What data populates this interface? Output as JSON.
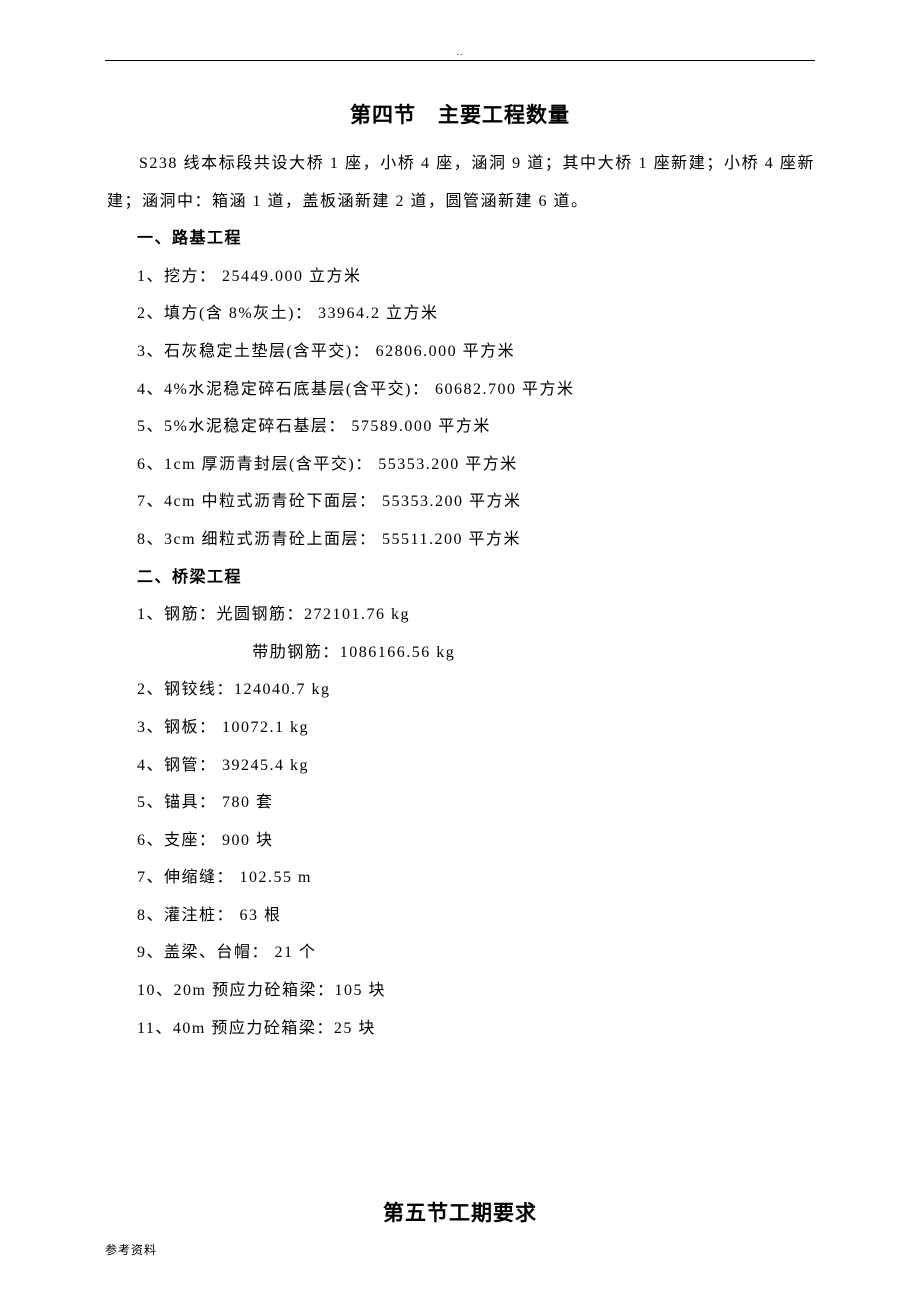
{
  "section4": {
    "title_left": "第四节",
    "title_right": "主要工程数量",
    "intro": "S238 线本标段共设大桥 1 座，小桥 4 座，涵洞 9 道；其中大桥 1 座新建；小桥 4 座新建；涵洞中：箱涵 1 道，盖板涵新建 2 道，圆管涵新建 6 道。"
  },
  "subgrade": {
    "heading": "一、路基工程",
    "items": [
      "1、挖方：  25449.000 立方米",
      "2、填方(含 8%灰土)：  33964.2 立方米",
      "3、石灰稳定土垫层(含平交)：  62806.000 平方米",
      "4、4%水泥稳定碎石底基层(含平交)：  60682.700 平方米",
      "5、5%水泥稳定碎石基层：  57589.000 平方米",
      "6、1cm 厚沥青封层(含平交)：  55353.200 平方米",
      "7、4cm 中粒式沥青砼下面层：  55353.200 平方米",
      "8、3cm 细粒式沥青砼上面层：  55511.200 平方米"
    ]
  },
  "bridge": {
    "heading": "二、桥梁工程",
    "item1_main": "1、钢筋：光圆钢筋：272101.76 kg",
    "item1_sub": "带肋钢筋：1086166.56 kg",
    "items_rest": [
      "2、钢铰线：124040.7 kg",
      "3、钢板：  10072.1 kg",
      "4、钢管：  39245.4 kg",
      "5、锚具：  780 套",
      "6、支座：  900 块",
      "7、伸缩缝：  102.55 m",
      "8、灌注桩：  63 根",
      "9、盖梁、台帽：  21 个",
      "10、20m 预应力砼箱梁：105 块",
      "11、40m 预应力砼箱梁：25 块"
    ]
  },
  "section5": {
    "title_left": "第五节",
    "title_right": "工期要求"
  },
  "footer": "参考资料"
}
